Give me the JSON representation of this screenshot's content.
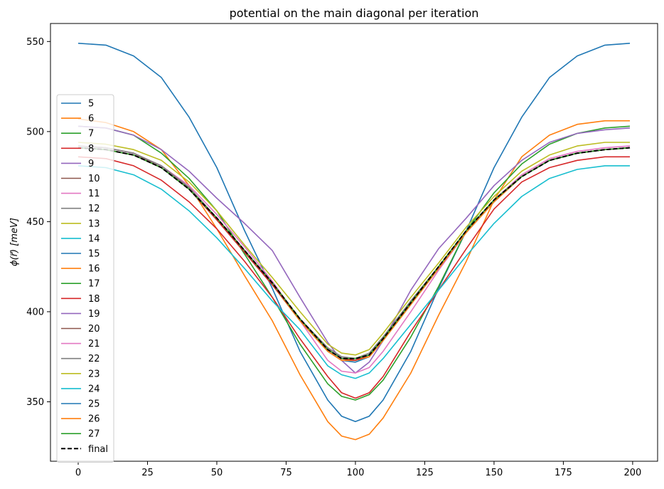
{
  "chart_data": {
    "type": "line",
    "title": "potential on the main diagonal per iteration",
    "xlabel": "",
    "ylabel": "ϕ(r⃗)  [meV]",
    "xlim": [
      -10,
      209
    ],
    "ylim": [
      317,
      560
    ],
    "xticks": [
      0,
      25,
      50,
      75,
      100,
      125,
      150,
      175,
      200
    ],
    "yticks": [
      350,
      400,
      450,
      500,
      550
    ],
    "grid": false,
    "legend_position": "lower-left",
    "x": [
      0,
      10,
      20,
      30,
      40,
      50,
      60,
      70,
      80,
      90,
      95,
      100,
      105,
      110,
      120,
      130,
      140,
      150,
      160,
      170,
      180,
      190,
      199
    ],
    "series": [
      {
        "name": "5",
        "color": "#1f77b4",
        "style": "solid",
        "values": [
          549,
          548,
          542,
          530,
          508,
          480,
          445,
          413,
          378,
          351,
          342,
          339,
          342,
          351,
          378,
          413,
          445,
          480,
          508,
          530,
          542,
          548,
          549
        ]
      },
      {
        "name": "6",
        "color": "#ff7f0e",
        "style": "solid",
        "values": [
          507,
          505,
          500,
          490,
          470,
          446,
          420,
          395,
          365,
          339,
          331,
          329,
          332,
          341,
          366,
          398,
          428,
          462,
          486,
          498,
          504,
          506,
          506
        ]
      },
      {
        "name": "7",
        "color": "#2ca02c",
        "style": "solid",
        "values": [
          503,
          502,
          498,
          488,
          474,
          456,
          432,
          408,
          382,
          360,
          353,
          351,
          354,
          362,
          386,
          414,
          445,
          466,
          482,
          493,
          499,
          502,
          503
        ]
      },
      {
        "name": "8",
        "color": "#d62728",
        "style": "solid",
        "values": [
          486,
          485,
          481,
          473,
          461,
          446,
          428,
          408,
          385,
          364,
          355,
          352,
          355,
          364,
          389,
          412,
          435,
          457,
          472,
          480,
          484,
          486,
          486
        ]
      },
      {
        "name": "9",
        "color": "#9467bd",
        "style": "solid",
        "values": [
          503,
          502,
          498,
          490,
          478,
          463,
          449,
          434,
          408,
          383,
          373,
          366,
          372,
          384,
          412,
          435,
          452,
          470,
          484,
          494,
          499,
          501,
          502
        ]
      },
      {
        "name": "10",
        "color": "#8c564b",
        "style": "solid",
        "values": [
          492,
          491,
          488,
          480,
          469,
          452,
          434,
          416,
          396,
          379,
          374,
          373,
          376,
          385,
          406,
          425,
          445,
          462,
          475,
          484,
          488,
          490,
          491
        ]
      },
      {
        "name": "11",
        "color": "#e377c2",
        "style": "solid",
        "values": [
          492,
          491,
          488,
          481,
          470,
          454,
          436,
          417,
          395,
          373,
          367,
          366,
          369,
          378,
          400,
          423,
          444,
          462,
          476,
          485,
          489,
          491,
          492
        ]
      },
      {
        "name": "12",
        "color": "#7f7f7f",
        "style": "solid",
        "values": [
          492,
          491,
          488,
          481,
          469,
          452,
          434,
          416,
          396,
          380,
          375,
          374,
          377,
          386,
          406,
          425,
          445,
          462,
          475,
          484,
          488,
          490,
          491
        ]
      },
      {
        "name": "13",
        "color": "#bcbd22",
        "style": "solid",
        "values": [
          494,
          493,
          490,
          484,
          472,
          456,
          437,
          419,
          400,
          382,
          377,
          376,
          379,
          388,
          408,
          427,
          447,
          464,
          478,
          487,
          492,
          494,
          494
        ]
      },
      {
        "name": "14",
        "color": "#17becf",
        "style": "solid",
        "values": [
          481,
          480,
          476,
          468,
          456,
          441,
          424,
          406,
          390,
          370,
          365,
          363,
          366,
          374,
          393,
          412,
          431,
          449,
          464,
          474,
          479,
          481,
          481
        ]
      },
      {
        "name": "15",
        "color": "#1f77b4",
        "style": "solid",
        "values": [
          491,
          490,
          487,
          480,
          468,
          451,
          433,
          415,
          395,
          378,
          373,
          372,
          375,
          384,
          404,
          424,
          444,
          461,
          475,
          484,
          488,
          490,
          491
        ]
      },
      {
        "name": "16",
        "color": "#ff7f0e",
        "style": "solid",
        "values": [
          491,
          490,
          487,
          480,
          468,
          451,
          433,
          415,
          395,
          378,
          373,
          373,
          375,
          384,
          404,
          424,
          444,
          461,
          475,
          484,
          488,
          490,
          491
        ]
      },
      {
        "name": "17",
        "color": "#2ca02c",
        "style": "solid",
        "values": [
          491,
          490,
          487,
          480,
          468,
          451,
          433,
          415,
          396,
          379,
          374,
          373,
          376,
          385,
          405,
          425,
          445,
          462,
          475,
          484,
          488,
          490,
          491
        ]
      },
      {
        "name": "18",
        "color": "#d62728",
        "style": "solid",
        "values": [
          491,
          490,
          487,
          480,
          468,
          451,
          433,
          415,
          396,
          379,
          374,
          373,
          376,
          385,
          405,
          425,
          445,
          462,
          475,
          484,
          488,
          490,
          491
        ]
      },
      {
        "name": "19",
        "color": "#9467bd",
        "style": "solid",
        "values": [
          491,
          490,
          487,
          480,
          468,
          452,
          434,
          416,
          396,
          379,
          374,
          374,
          376,
          385,
          405,
          425,
          445,
          462,
          475,
          484,
          488,
          490,
          491
        ]
      },
      {
        "name": "20",
        "color": "#8c564b",
        "style": "solid",
        "values": [
          491,
          490,
          487,
          480,
          468,
          452,
          434,
          416,
          396,
          379,
          374,
          374,
          376,
          385,
          405,
          425,
          445,
          462,
          475,
          484,
          488,
          490,
          491
        ]
      },
      {
        "name": "21",
        "color": "#e377c2",
        "style": "solid",
        "values": [
          491,
          490,
          487,
          480,
          468,
          452,
          434,
          416,
          396,
          379,
          374,
          374,
          376,
          385,
          405,
          425,
          445,
          462,
          475,
          484,
          488,
          490,
          491
        ]
      },
      {
        "name": "22",
        "color": "#7f7f7f",
        "style": "solid",
        "values": [
          491,
          490,
          487,
          480,
          468,
          452,
          434,
          416,
          396,
          379,
          374,
          374,
          376,
          385,
          405,
          425,
          445,
          462,
          475,
          484,
          488,
          490,
          491
        ]
      },
      {
        "name": "23",
        "color": "#bcbd22",
        "style": "solid",
        "values": [
          491,
          490,
          487,
          480,
          468,
          452,
          434,
          416,
          396,
          379,
          374,
          374,
          376,
          385,
          405,
          425,
          445,
          462,
          475,
          484,
          488,
          490,
          491
        ]
      },
      {
        "name": "24",
        "color": "#17becf",
        "style": "solid",
        "values": [
          491,
          490,
          487,
          480,
          468,
          452,
          434,
          416,
          396,
          379,
          374,
          374,
          376,
          385,
          405,
          425,
          445,
          462,
          475,
          484,
          488,
          490,
          491
        ]
      },
      {
        "name": "25",
        "color": "#1f77b4",
        "style": "solid",
        "values": [
          491,
          490,
          487,
          480,
          468,
          452,
          434,
          416,
          396,
          379,
          374,
          374,
          376,
          385,
          405,
          425,
          445,
          462,
          475,
          484,
          488,
          490,
          491
        ]
      },
      {
        "name": "26",
        "color": "#ff7f0e",
        "style": "solid",
        "values": [
          491,
          490,
          487,
          480,
          468,
          452,
          434,
          416,
          396,
          379,
          374,
          374,
          376,
          385,
          405,
          425,
          445,
          462,
          475,
          484,
          488,
          490,
          491
        ]
      },
      {
        "name": "27",
        "color": "#2ca02c",
        "style": "solid",
        "values": [
          491,
          490,
          487,
          480,
          468,
          452,
          434,
          416,
          396,
          379,
          374,
          374,
          376,
          385,
          405,
          425,
          445,
          462,
          475,
          484,
          488,
          490,
          491
        ]
      },
      {
        "name": "final",
        "color": "#000000",
        "style": "dashed",
        "values": [
          491,
          490,
          487,
          480,
          468,
          452,
          434,
          416,
          396,
          379,
          374,
          374,
          376,
          385,
          405,
          425,
          445,
          462,
          475,
          484,
          488,
          490,
          491
        ]
      }
    ]
  }
}
